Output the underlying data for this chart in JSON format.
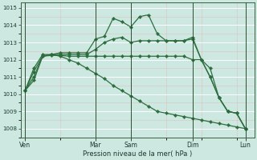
{
  "bg_color": "#cce8e0",
  "grid_color": "#ffffff",
  "line_color": "#2d6e3e",
  "xlabel": "Pression niveau de la mer( hPa )",
  "ylim": [
    1007.5,
    1015.3
  ],
  "yticks": [
    1008,
    1009,
    1010,
    1011,
    1012,
    1013,
    1014,
    1015
  ],
  "xtick_labels": [
    "Ven",
    "Mar",
    "Sam",
    "Dim",
    "Lun"
  ],
  "xtick_positions": [
    1,
    9,
    13,
    20,
    26
  ],
  "vline_positions": [
    1,
    9,
    13,
    20,
    26
  ],
  "xlim": [
    0.5,
    27
  ],
  "series": [
    {
      "x": [
        1,
        2,
        3,
        4,
        5,
        6,
        7,
        8,
        9,
        10,
        11,
        12,
        13,
        14,
        15,
        16,
        17,
        18,
        19,
        20,
        21,
        22,
        23,
        24,
        25,
        26
      ],
      "y": [
        1010.2,
        1010.8,
        1012.2,
        1012.3,
        1012.4,
        1012.4,
        1012.4,
        1012.4,
        1013.2,
        1013.35,
        1014.4,
        1014.2,
        1013.9,
        1014.5,
        1014.6,
        1013.5,
        1013.1,
        1013.1,
        1013.1,
        1013.2,
        1012.0,
        1011.0,
        1009.8,
        1009.0,
        1008.9,
        1008.0
      ]
    },
    {
      "x": [
        1,
        2,
        3,
        4,
        5,
        6,
        7,
        8,
        9,
        10,
        11,
        12,
        13,
        14,
        15,
        16,
        17,
        18,
        19,
        20,
        21,
        22,
        23,
        24,
        25,
        26
      ],
      "y": [
        1010.2,
        1011.0,
        1012.2,
        1012.3,
        1012.3,
        1012.3,
        1012.3,
        1012.3,
        1012.6,
        1013.0,
        1013.2,
        1013.3,
        1013.0,
        1013.1,
        1013.1,
        1013.1,
        1013.1,
        1013.1,
        1013.1,
        1013.3,
        1012.0,
        1011.0,
        1009.8,
        1009.0,
        1008.9,
        1008.0
      ]
    },
    {
      "x": [
        1,
        2,
        3,
        4,
        5,
        6,
        7,
        8,
        9,
        10,
        11,
        12,
        13,
        14,
        15,
        16,
        17,
        18,
        19,
        20,
        21,
        22,
        23,
        24,
        25,
        26
      ],
      "y": [
        1010.2,
        1011.3,
        1012.2,
        1012.25,
        1012.25,
        1012.2,
        1012.2,
        1012.2,
        1012.2,
        1012.2,
        1012.2,
        1012.2,
        1012.2,
        1012.2,
        1012.2,
        1012.2,
        1012.2,
        1012.2,
        1012.2,
        1012.0,
        1012.0,
        1011.5,
        1009.8,
        1009.0,
        1008.9,
        1008.0
      ]
    },
    {
      "x": [
        1,
        2,
        3,
        4,
        5,
        6,
        7,
        8,
        9,
        10,
        11,
        12,
        13,
        14,
        15,
        16,
        17,
        18,
        19,
        20,
        21,
        22,
        23,
        24,
        25,
        26
      ],
      "y": [
        1010.2,
        1011.5,
        1012.3,
        1012.3,
        1012.2,
        1012.0,
        1011.8,
        1011.5,
        1011.2,
        1010.9,
        1010.5,
        1010.2,
        1009.9,
        1009.6,
        1009.3,
        1009.0,
        1008.9,
        1008.8,
        1008.7,
        1008.6,
        1008.5,
        1008.4,
        1008.3,
        1008.2,
        1008.1,
        1008.0
      ]
    }
  ]
}
